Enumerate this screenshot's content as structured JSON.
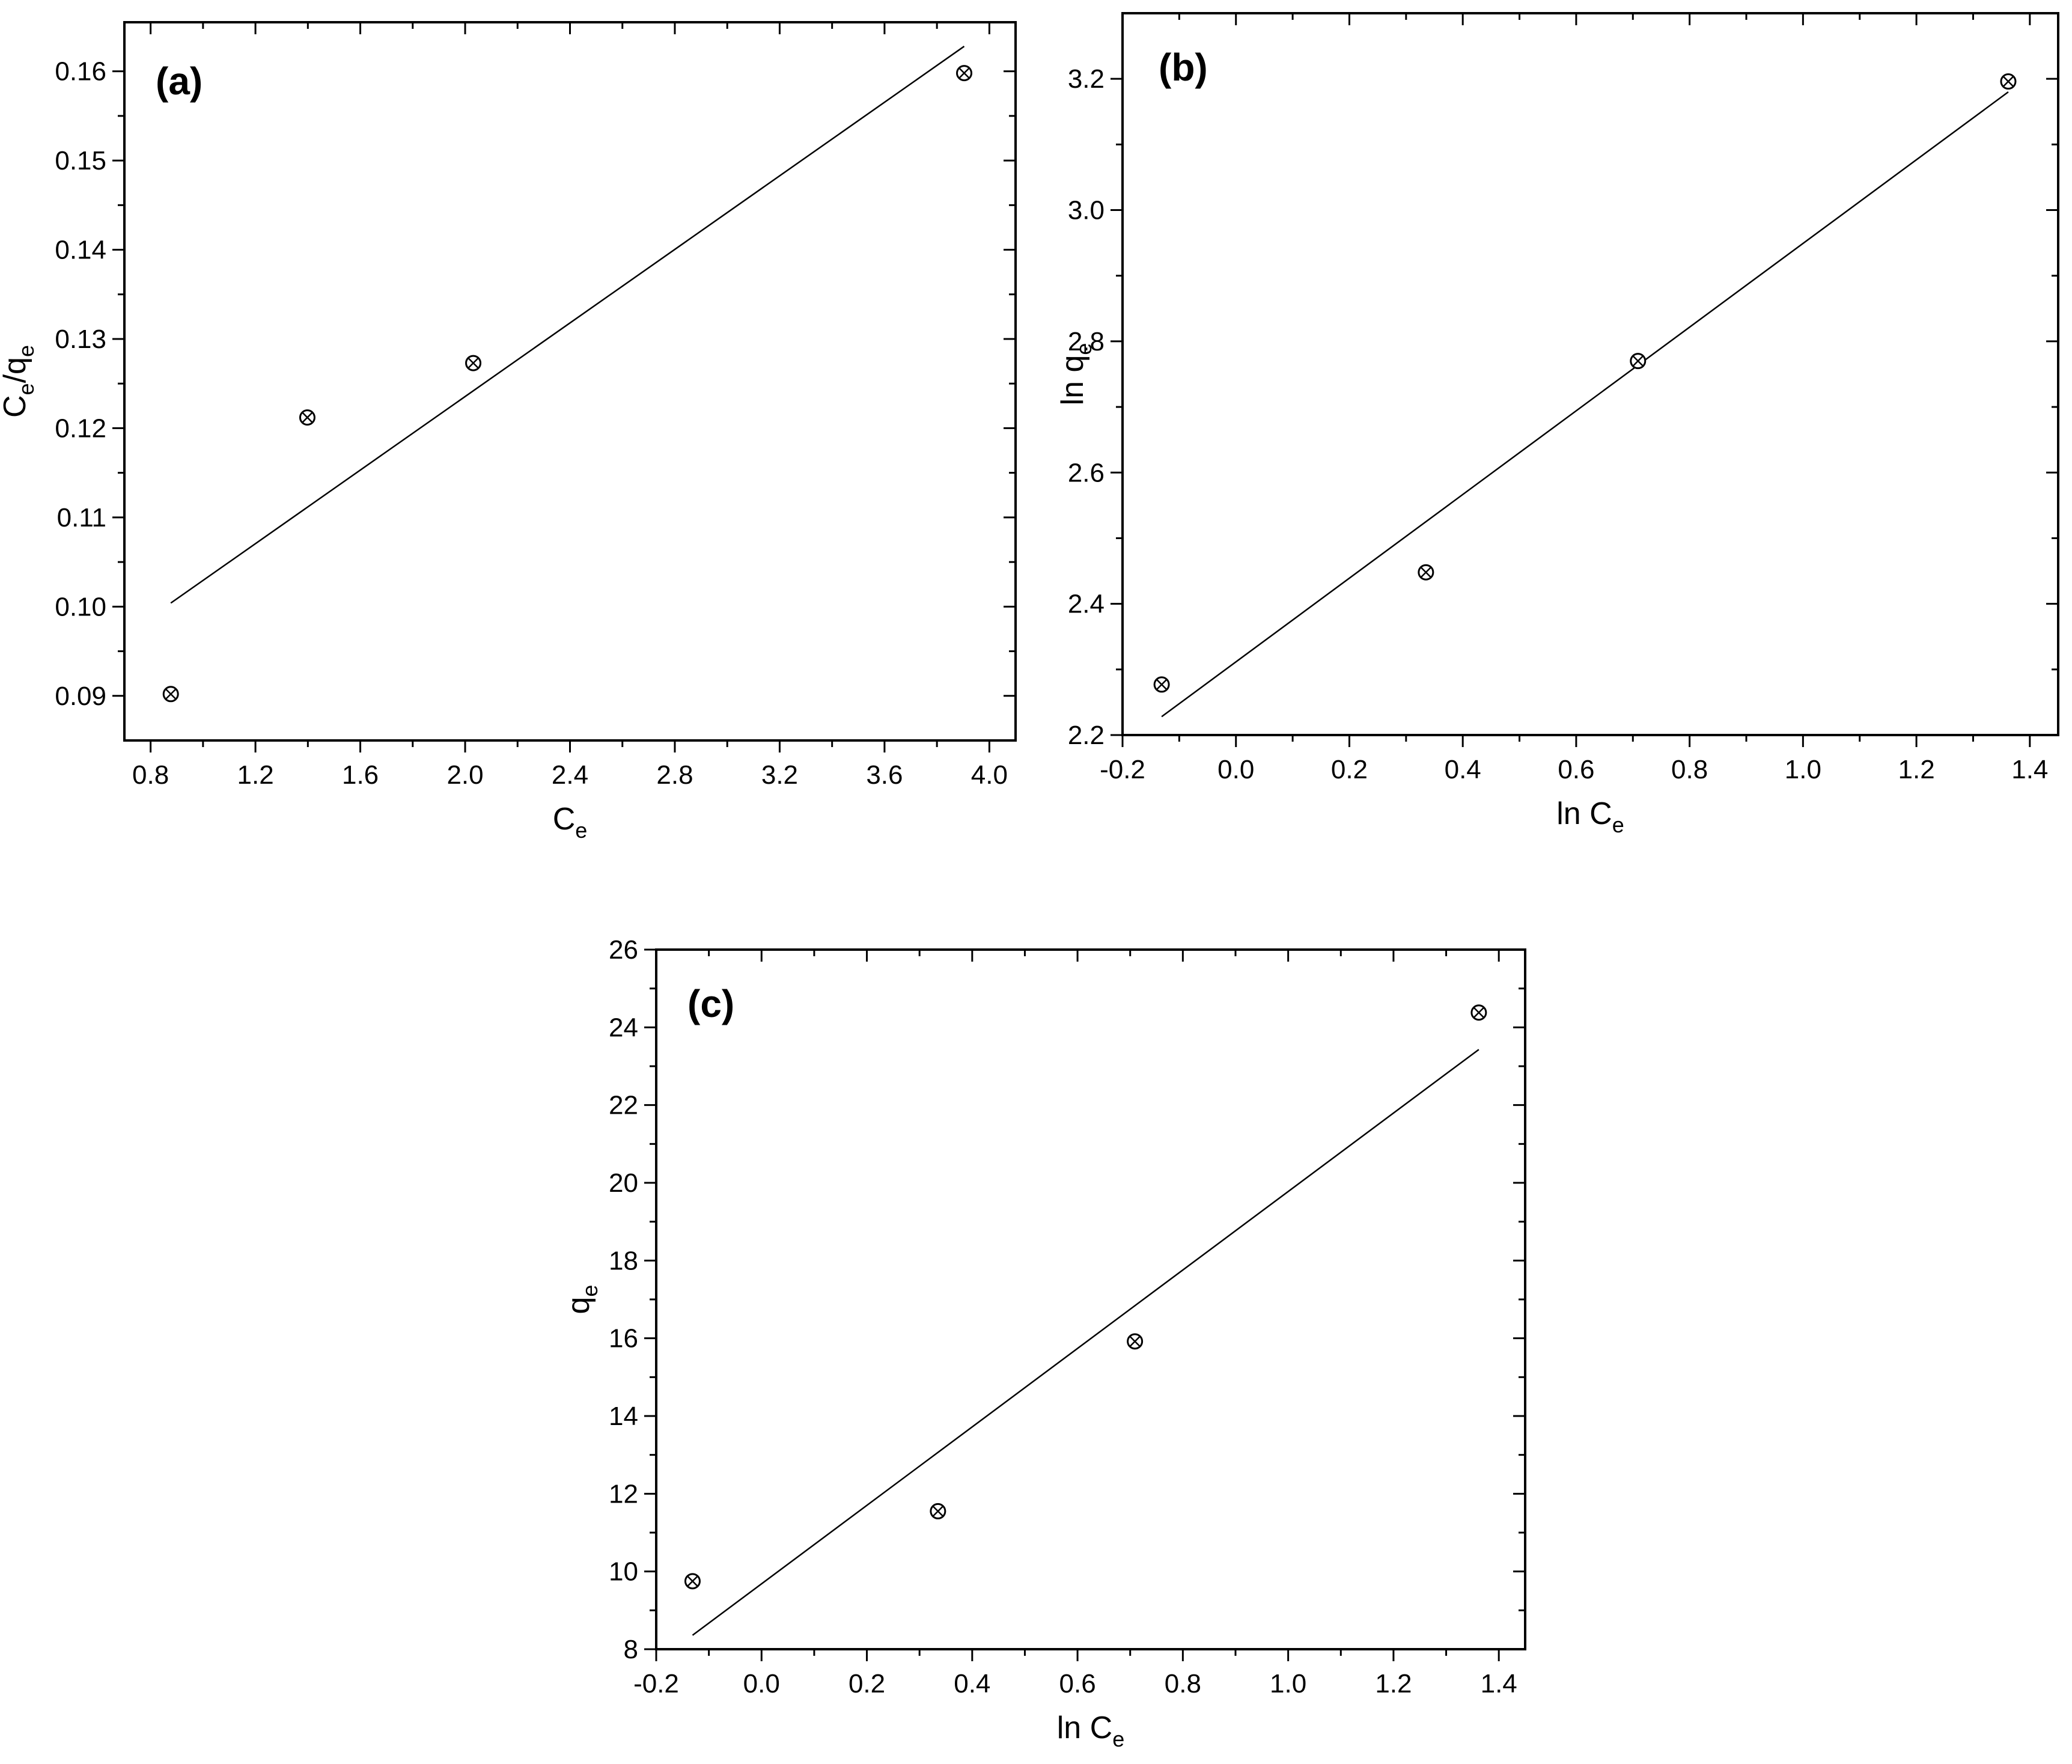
{
  "chart_data": [
    {
      "id": "a",
      "type": "scatter",
      "panel_label": "(a)",
      "xlabel": {
        "main": "C",
        "sub": "e",
        "rest": ""
      },
      "ylabel": {
        "main": "C",
        "sub": "e",
        "mid": "/q",
        "sub2": "e"
      },
      "xlim": [
        0.7,
        4.1
      ],
      "ylim": [
        0.085,
        0.1655
      ],
      "xticks": [
        0.8,
        1.2,
        1.6,
        2.0,
        2.4,
        2.8,
        3.2,
        3.6,
        4.0
      ],
      "xticklabels": [
        "0.8",
        "1.2",
        "1.6",
        "2.0",
        "2.4",
        "2.8",
        "3.2",
        "3.6",
        "4.0"
      ],
      "yticks": [
        0.09,
        0.1,
        0.11,
        0.12,
        0.13,
        0.14,
        0.15,
        0.16
      ],
      "yticklabels": [
        "0.09",
        "0.10",
        "0.11",
        "0.12",
        "0.13",
        "0.14",
        "0.15",
        "0.16"
      ],
      "points": [
        {
          "x": 0.877,
          "y": 0.0902
        },
        {
          "x": 1.398,
          "y": 0.1212
        },
        {
          "x": 2.031,
          "y": 0.1273
        },
        {
          "x": 3.904,
          "y": 0.1598
        }
      ],
      "fit_line": {
        "x": [
          0.877,
          3.904
        ],
        "y": [
          0.1004,
          0.1628
        ]
      },
      "marker": "circle-x",
      "grid": false
    },
    {
      "id": "b",
      "type": "scatter",
      "panel_label": "(b)",
      "xlabel": {
        "main": "ln C",
        "sub": "e"
      },
      "ylabel": {
        "main": "ln q",
        "sub": "e"
      },
      "xlim": [
        -0.2,
        1.45
      ],
      "ylim": [
        2.2,
        3.3
      ],
      "xticks": [
        -0.2,
        0.0,
        0.2,
        0.4,
        0.6,
        0.8,
        1.0,
        1.2,
        1.4
      ],
      "xticklabels": [
        "-0.2",
        "0.0",
        "0.2",
        "0.4",
        "0.6",
        "0.8",
        "1.0",
        "1.2",
        "1.4"
      ],
      "yticks": [
        2.2,
        2.4,
        2.6,
        2.8,
        3.0,
        3.2
      ],
      "yticklabels": [
        "2.2",
        "2.4",
        "2.6",
        "2.8",
        "3.0",
        "3.2"
      ],
      "points": [
        {
          "x": -0.131,
          "y": 2.277
        },
        {
          "x": 0.335,
          "y": 2.448
        },
        {
          "x": 0.709,
          "y": 2.77
        },
        {
          "x": 1.362,
          "y": 3.196
        }
      ],
      "fit_line": {
        "x": [
          -0.131,
          1.362
        ],
        "y": [
          2.228,
          3.18
        ]
      },
      "marker": "circle-x",
      "grid": false
    },
    {
      "id": "c",
      "type": "scatter",
      "panel_label": "(c)",
      "xlabel": {
        "main": "ln C",
        "sub": "e"
      },
      "ylabel": {
        "main": "q",
        "sub": "e"
      },
      "xlim": [
        -0.2,
        1.45
      ],
      "ylim": [
        8,
        26
      ],
      "xticks": [
        -0.2,
        0.0,
        0.2,
        0.4,
        0.6,
        0.8,
        1.0,
        1.2,
        1.4
      ],
      "xticklabels": [
        "-0.2",
        "0.0",
        "0.2",
        "0.4",
        "0.6",
        "0.8",
        "1.0",
        "1.2",
        "1.4"
      ],
      "yticks": [
        8,
        10,
        12,
        14,
        16,
        18,
        20,
        22,
        24,
        26
      ],
      "yticklabels": [
        "8",
        "10",
        "12",
        "14",
        "16",
        "18",
        "20",
        "22",
        "24",
        "26"
      ],
      "points": [
        {
          "x": -0.131,
          "y": 9.75
        },
        {
          "x": 0.335,
          "y": 11.55
        },
        {
          "x": 0.709,
          "y": 15.92
        },
        {
          "x": 1.362,
          "y": 24.38
        }
      ],
      "fit_line": {
        "x": [
          -0.131,
          1.362
        ],
        "y": [
          8.36,
          23.43
        ]
      },
      "marker": "circle-x",
      "grid": false
    }
  ]
}
